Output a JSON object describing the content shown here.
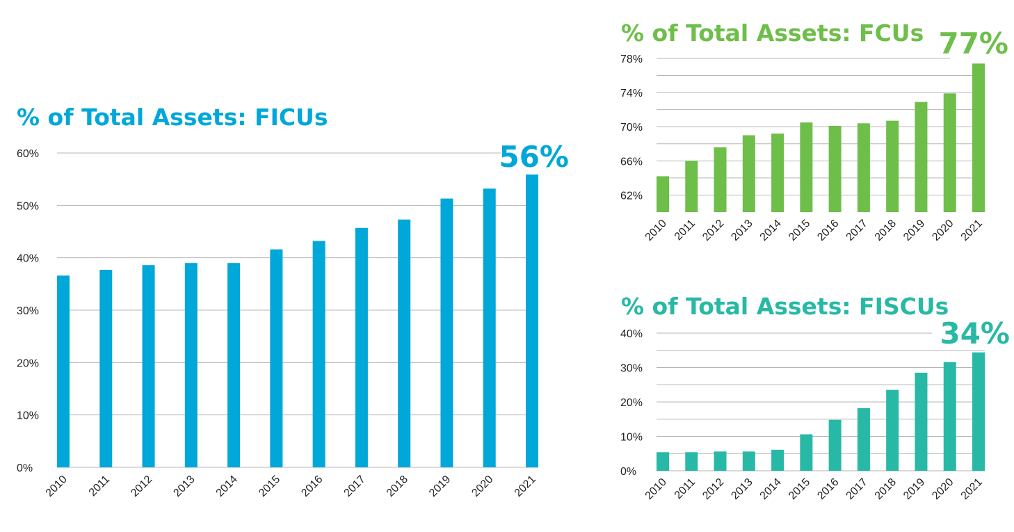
{
  "colors": {
    "ficu": "#00a7d9",
    "fcu": "#6ebe4a",
    "fiscu": "#27b9a6",
    "grid": "#b5b5b5",
    "text": "#231f20"
  },
  "chart_data": [
    {
      "id": "ficu",
      "type": "bar",
      "title": "% of Total Assets: FICUs",
      "callout": "56%",
      "categories": [
        "2010",
        "2011",
        "2012",
        "2013",
        "2014",
        "2015",
        "2016",
        "2017",
        "2018",
        "2019",
        "2020",
        "2021"
      ],
      "values": [
        36.6,
        37.7,
        38.6,
        39.0,
        39.0,
        41.6,
        43.2,
        45.7,
        47.3,
        51.3,
        53.2,
        55.9
      ],
      "yticks": [
        0,
        10,
        20,
        30,
        40,
        50,
        60
      ],
      "ytick_labels": [
        "0%",
        "10%",
        "20%",
        "30%",
        "40%",
        "50%",
        "60%"
      ],
      "ylim": [
        0,
        60
      ],
      "grid": true
    },
    {
      "id": "fcu",
      "type": "bar",
      "title": "% of Total Assets: FCUs",
      "callout": "77%",
      "categories": [
        "2010",
        "2011",
        "2012",
        "2013",
        "2014",
        "2015",
        "2016",
        "2017",
        "2018",
        "2019",
        "2020",
        "2021"
      ],
      "values": [
        64.2,
        66.0,
        67.6,
        69.0,
        69.2,
        70.5,
        70.1,
        70.4,
        70.7,
        72.9,
        73.9,
        77.4
      ],
      "yticks": [
        62,
        66,
        70,
        74,
        78
      ],
      "ytick_labels": [
        "62%",
        "66%",
        "70%",
        "74%",
        "78%"
      ],
      "ylim": [
        60,
        78
      ],
      "grid": true
    },
    {
      "id": "fiscu",
      "type": "bar",
      "title": "% of Total Assets: FISCUs",
      "callout": "34%",
      "categories": [
        "2010",
        "2011",
        "2012",
        "2013",
        "2014",
        "2015",
        "2016",
        "2017",
        "2018",
        "2019",
        "2020",
        "2021"
      ],
      "values": [
        5.4,
        5.4,
        5.6,
        5.6,
        6.1,
        10.6,
        14.8,
        18.2,
        23.5,
        28.5,
        31.6,
        34.4
      ],
      "yticks": [
        0,
        10,
        20,
        30,
        40
      ],
      "ytick_labels": [
        "0%",
        "10%",
        "20%",
        "30%",
        "40%"
      ],
      "ylim": [
        0,
        40
      ],
      "grid": true
    }
  ]
}
